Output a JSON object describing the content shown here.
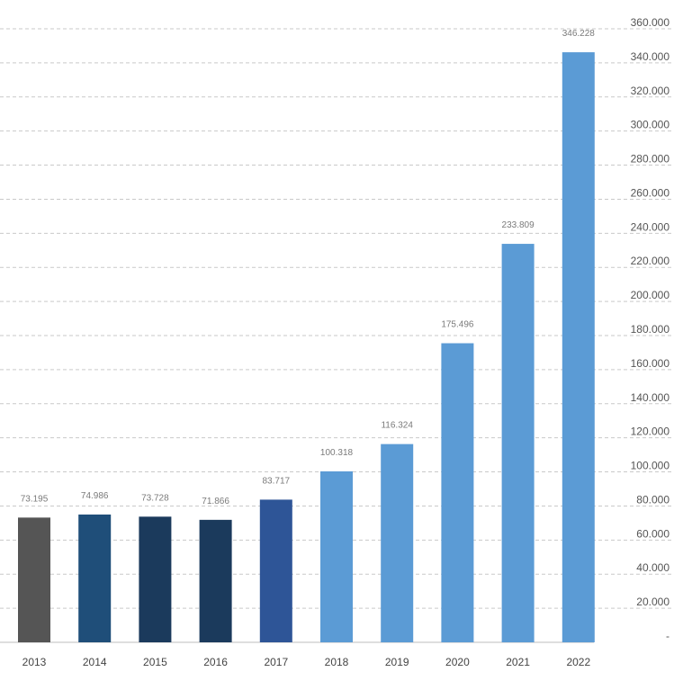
{
  "chart_data": {
    "type": "bar",
    "title": "",
    "xlabel": "",
    "ylabel": "",
    "categories": [
      "2013",
      "2014",
      "2015",
      "2016",
      "2017",
      "2018",
      "2019",
      "2020",
      "2021",
      "2022"
    ],
    "values": [
      73195,
      74986,
      73728,
      71866,
      83717,
      100318,
      116324,
      175496,
      233809,
      346228
    ],
    "data_labels": [
      "73.195",
      "74.986",
      "73.728",
      "71.866",
      "83.717",
      "100.318",
      "116.324",
      "175.496",
      "233.809",
      "346.228"
    ],
    "bar_colors": [
      "#555555",
      "#1f4e79",
      "#1b3a5c",
      "#1b3a5c",
      "#2e5597",
      "#5b9bd5",
      "#5b9bd5",
      "#5b9bd5",
      "#5b9bd5",
      "#5b9bd5"
    ],
    "ylim": [
      0,
      360000
    ],
    "y_ticks": [
      0,
      20000,
      40000,
      60000,
      80000,
      100000,
      120000,
      140000,
      160000,
      180000,
      200000,
      220000,
      240000,
      260000,
      280000,
      300000,
      320000,
      340000,
      360000
    ],
    "y_tick_labels": [
      "-",
      "20.000",
      "40.000",
      "60.000",
      "80.000",
      "100.000",
      "120.000",
      "140.000",
      "160.000",
      "180.000",
      "200.000",
      "220.000",
      "240.000",
      "260.000",
      "280.000",
      "300.000",
      "320.000",
      "340.000",
      "360.000"
    ],
    "grid": true,
    "y_axis_position": "right",
    "legend": "none"
  }
}
